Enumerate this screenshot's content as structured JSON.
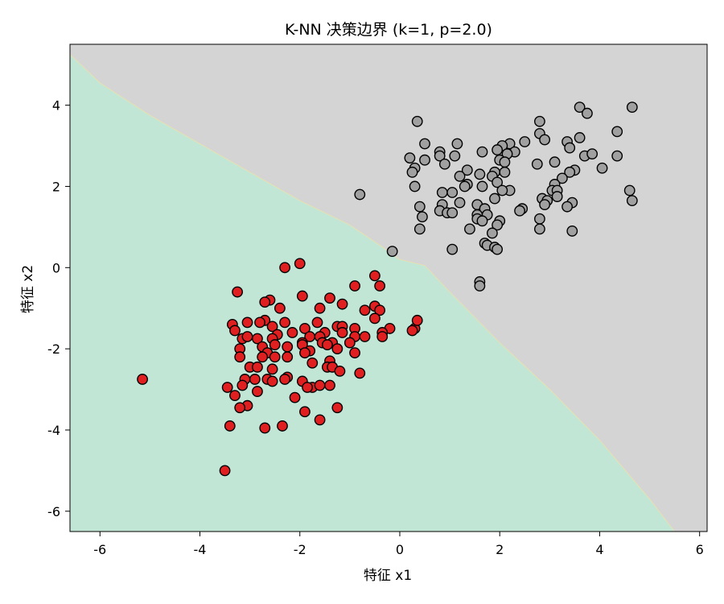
{
  "chart_data": {
    "type": "scatter",
    "title": "K-NN 决策边界 (k=1, p=2.0)",
    "xlabel": "特征 x1",
    "ylabel": "特征 x2",
    "xlim": [
      -6.6,
      6.15
    ],
    "ylim": [
      -6.5,
      5.5
    ],
    "xticks": [
      -6,
      -4,
      -2,
      0,
      2,
      4,
      6
    ],
    "yticks": [
      -6,
      -4,
      -2,
      0,
      2,
      4
    ],
    "grid": false,
    "region_colors": {
      "class_0": "#c2e6d6",
      "class_1": "#d4d4d4"
    },
    "decision_boundary": [
      [
        -6.6,
        5.25
      ],
      [
        -6.0,
        4.55
      ],
      [
        -5.0,
        3.75
      ],
      [
        -4.0,
        3.05
      ],
      [
        -3.0,
        2.35
      ],
      [
        -2.0,
        1.65
      ],
      [
        -1.0,
        1.05
      ],
      [
        -0.4,
        0.55
      ],
      [
        0.0,
        0.2
      ],
      [
        0.5,
        0.05
      ],
      [
        1.0,
        -0.6
      ],
      [
        2.0,
        -1.85
      ],
      [
        3.0,
        -3.0
      ],
      [
        4.0,
        -4.25
      ],
      [
        5.0,
        -5.7
      ],
      [
        5.5,
        -6.5
      ]
    ],
    "series": [
      {
        "color": "#e02020",
        "points": [
          [
            -2.0,
            0.1
          ],
          [
            -2.3,
            0.0
          ],
          [
            -3.25,
            -0.6
          ],
          [
            -0.5,
            -0.2
          ],
          [
            -0.9,
            -0.45
          ],
          [
            -0.4,
            -0.45
          ],
          [
            -1.95,
            -0.7
          ],
          [
            -2.6,
            -0.8
          ],
          [
            -2.7,
            -0.85
          ],
          [
            -1.4,
            -0.75
          ],
          [
            -1.15,
            -0.9
          ],
          [
            -1.6,
            -1.0
          ],
          [
            -2.4,
            -1.0
          ],
          [
            -0.5,
            -0.95
          ],
          [
            -0.4,
            -1.05
          ],
          [
            -0.7,
            -1.05
          ],
          [
            -0.5,
            -1.25
          ],
          [
            -2.7,
            -1.3
          ],
          [
            -2.3,
            -1.35
          ],
          [
            -3.05,
            -1.35
          ],
          [
            -3.35,
            -1.4
          ],
          [
            -2.8,
            -1.35
          ],
          [
            -2.55,
            -1.45
          ],
          [
            -1.65,
            -1.35
          ],
          [
            -1.25,
            -1.45
          ],
          [
            -1.15,
            -1.45
          ],
          [
            -1.9,
            -1.5
          ],
          [
            -1.5,
            -1.6
          ],
          [
            -1.6,
            -1.7
          ],
          [
            -1.8,
            -1.7
          ],
          [
            -2.15,
            -1.6
          ],
          [
            -2.45,
            -1.65
          ],
          [
            -1.15,
            -1.6
          ],
          [
            -0.9,
            -1.5
          ],
          [
            -0.2,
            -1.5
          ],
          [
            -0.35,
            -1.6
          ],
          [
            -0.7,
            -1.7
          ],
          [
            -0.9,
            -1.7
          ],
          [
            -0.35,
            -1.7
          ],
          [
            0.3,
            -1.5
          ],
          [
            0.35,
            -1.3
          ],
          [
            0.25,
            -1.55
          ],
          [
            -3.3,
            -1.55
          ],
          [
            -3.15,
            -1.75
          ],
          [
            -2.55,
            -1.75
          ],
          [
            -1.95,
            -1.85
          ],
          [
            -1.95,
            -1.9
          ],
          [
            -1.55,
            -1.85
          ],
          [
            -1.35,
            -1.85
          ],
          [
            -1.0,
            -1.85
          ],
          [
            -2.85,
            -1.75
          ],
          [
            -2.75,
            -1.95
          ],
          [
            -3.05,
            -1.7
          ],
          [
            -2.5,
            -1.9
          ],
          [
            -2.25,
            -1.95
          ],
          [
            -1.8,
            -2.05
          ],
          [
            -1.25,
            -2.0
          ],
          [
            -1.45,
            -1.9
          ],
          [
            -3.2,
            -2.0
          ],
          [
            -3.2,
            -2.2
          ],
          [
            -2.65,
            -2.1
          ],
          [
            -2.75,
            -2.2
          ],
          [
            -2.5,
            -2.2
          ],
          [
            -1.9,
            -2.1
          ],
          [
            -2.25,
            -2.2
          ],
          [
            -0.9,
            -2.1
          ],
          [
            -1.4,
            -2.3
          ],
          [
            -1.75,
            -2.35
          ],
          [
            -1.45,
            -2.45
          ],
          [
            -1.35,
            -2.45
          ],
          [
            -1.2,
            -2.55
          ],
          [
            -3.0,
            -2.45
          ],
          [
            -2.85,
            -2.45
          ],
          [
            -2.55,
            -2.5
          ],
          [
            -0.8,
            -2.6
          ],
          [
            -2.25,
            -2.7
          ],
          [
            -3.1,
            -2.75
          ],
          [
            -2.9,
            -2.75
          ],
          [
            -2.65,
            -2.75
          ],
          [
            -2.55,
            -2.8
          ],
          [
            -2.3,
            -2.75
          ],
          [
            -1.95,
            -2.8
          ],
          [
            -1.75,
            -2.95
          ],
          [
            -1.85,
            -2.95
          ],
          [
            -1.6,
            -2.9
          ],
          [
            -1.4,
            -2.9
          ],
          [
            -3.15,
            -2.9
          ],
          [
            -5.15,
            -2.75
          ],
          [
            -3.45,
            -2.95
          ],
          [
            -3.3,
            -3.15
          ],
          [
            -2.85,
            -3.05
          ],
          [
            -2.1,
            -3.2
          ],
          [
            -3.05,
            -3.4
          ],
          [
            -3.2,
            -3.45
          ],
          [
            -1.25,
            -3.45
          ],
          [
            -1.9,
            -3.55
          ],
          [
            -1.6,
            -3.75
          ],
          [
            -2.35,
            -3.9
          ],
          [
            -2.7,
            -3.95
          ],
          [
            -3.4,
            -3.9
          ],
          [
            -3.5,
            -5.0
          ]
        ]
      },
      {
        "color": "#a0a0a0",
        "points": [
          [
            3.6,
            3.95
          ],
          [
            4.65,
            3.95
          ],
          [
            3.75,
            3.8
          ],
          [
            0.35,
            3.6
          ],
          [
            2.8,
            3.6
          ],
          [
            4.35,
            3.35
          ],
          [
            2.8,
            3.3
          ],
          [
            3.6,
            3.2
          ],
          [
            2.9,
            3.15
          ],
          [
            3.35,
            3.1
          ],
          [
            0.5,
            3.05
          ],
          [
            1.15,
            3.05
          ],
          [
            2.2,
            3.05
          ],
          [
            2.05,
            3.0
          ],
          [
            2.5,
            3.1
          ],
          [
            3.4,
            2.95
          ],
          [
            2.3,
            2.85
          ],
          [
            1.65,
            2.85
          ],
          [
            0.8,
            2.85
          ],
          [
            1.95,
            2.9
          ],
          [
            0.8,
            2.75
          ],
          [
            1.1,
            2.75
          ],
          [
            3.7,
            2.75
          ],
          [
            3.85,
            2.8
          ],
          [
            2.15,
            2.8
          ],
          [
            0.2,
            2.7
          ],
          [
            0.5,
            2.65
          ],
          [
            2.0,
            2.65
          ],
          [
            2.1,
            2.6
          ],
          [
            3.1,
            2.6
          ],
          [
            2.75,
            2.55
          ],
          [
            0.9,
            2.55
          ],
          [
            4.35,
            2.75
          ],
          [
            4.05,
            2.45
          ],
          [
            0.3,
            2.45
          ],
          [
            0.25,
            2.35
          ],
          [
            1.35,
            2.4
          ],
          [
            1.6,
            2.3
          ],
          [
            1.9,
            2.35
          ],
          [
            1.85,
            2.25
          ],
          [
            2.1,
            2.35
          ],
          [
            1.2,
            2.25
          ],
          [
            3.5,
            2.4
          ],
          [
            3.4,
            2.35
          ],
          [
            3.25,
            2.2
          ],
          [
            3.1,
            2.05
          ],
          [
            1.35,
            2.05
          ],
          [
            1.65,
            2.0
          ],
          [
            1.95,
            2.1
          ],
          [
            1.3,
            2.0
          ],
          [
            0.3,
            2.0
          ],
          [
            2.2,
            1.9
          ],
          [
            2.05,
            1.9
          ],
          [
            3.05,
            1.9
          ],
          [
            3.15,
            1.9
          ],
          [
            4.6,
            1.9
          ],
          [
            0.85,
            1.85
          ],
          [
            1.05,
            1.85
          ],
          [
            3.15,
            1.75
          ],
          [
            2.85,
            1.7
          ],
          [
            2.95,
            1.65
          ],
          [
            4.65,
            1.65
          ],
          [
            1.9,
            1.7
          ],
          [
            -0.8,
            1.8
          ],
          [
            3.45,
            1.6
          ],
          [
            1.2,
            1.6
          ],
          [
            0.85,
            1.55
          ],
          [
            2.9,
            1.55
          ],
          [
            3.35,
            1.5
          ],
          [
            0.4,
            1.5
          ],
          [
            1.55,
            1.55
          ],
          [
            2.45,
            1.45
          ],
          [
            1.7,
            1.45
          ],
          [
            0.8,
            1.4
          ],
          [
            0.95,
            1.35
          ],
          [
            1.05,
            1.35
          ],
          [
            2.4,
            1.4
          ],
          [
            1.55,
            1.3
          ],
          [
            1.75,
            1.3
          ],
          [
            0.45,
            1.25
          ],
          [
            1.55,
            1.2
          ],
          [
            2.8,
            1.2
          ],
          [
            1.65,
            1.15
          ],
          [
            2.0,
            1.15
          ],
          [
            1.95,
            1.05
          ],
          [
            0.4,
            0.95
          ],
          [
            1.4,
            0.95
          ],
          [
            2.8,
            0.95
          ],
          [
            3.45,
            0.9
          ],
          [
            1.85,
            0.85
          ],
          [
            1.7,
            0.6
          ],
          [
            1.75,
            0.55
          ],
          [
            1.9,
            0.5
          ],
          [
            1.95,
            0.45
          ],
          [
            1.05,
            0.45
          ],
          [
            -0.15,
            0.4
          ],
          [
            1.6,
            -0.35
          ],
          [
            1.6,
            -0.45
          ]
        ]
      }
    ]
  }
}
